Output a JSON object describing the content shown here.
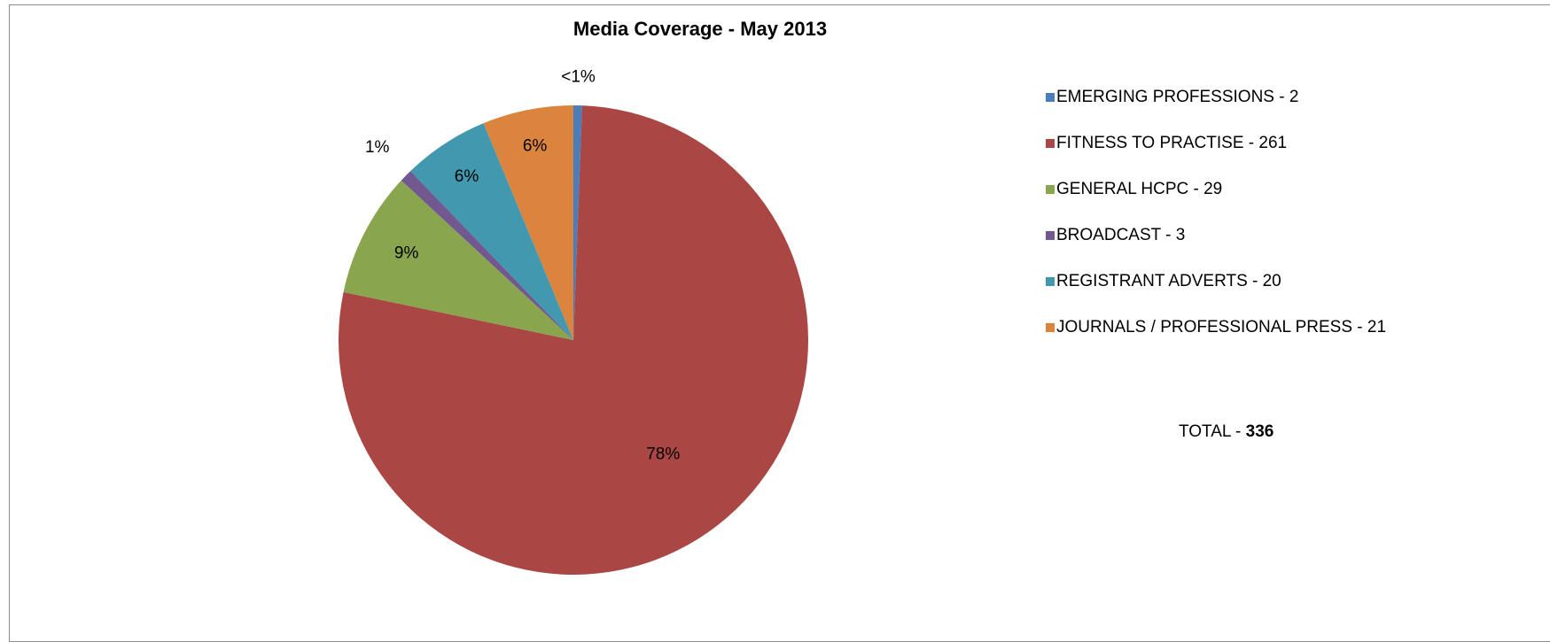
{
  "chart_data": {
    "type": "pie",
    "title": "Media Coverage - May 2013",
    "categories": [
      "EMERGING PROFESSIONS",
      "FITNESS TO PRACTISE",
      "GENERAL HCPC",
      "BROADCAST",
      "REGISTRANT ADVERTS",
      "JOURNALS / PROFESSIONAL PRESS"
    ],
    "values": [
      2,
      261,
      29,
      3,
      20,
      21
    ],
    "data_labels": [
      "<1%",
      "78%",
      "9%",
      "1%",
      "6%",
      "6%"
    ],
    "legend_labels": [
      "EMERGING PROFESSIONS - 2",
      "FITNESS TO PRACTISE - 261",
      "GENERAL HCPC - 29",
      "BROADCAST - 3",
      "REGISTRANT ADVERTS - 20",
      "JOURNALS / PROFESSIONAL PRESS - 21"
    ],
    "colors": [
      "#4a7ebb",
      "#aa4643",
      "#89a54e",
      "#71588f",
      "#4198af",
      "#db843d"
    ],
    "legend_placement": "right",
    "start_angle_deg": 0,
    "direction": "clockwise"
  },
  "total": {
    "label": "TOTAL - ",
    "value": "336"
  }
}
